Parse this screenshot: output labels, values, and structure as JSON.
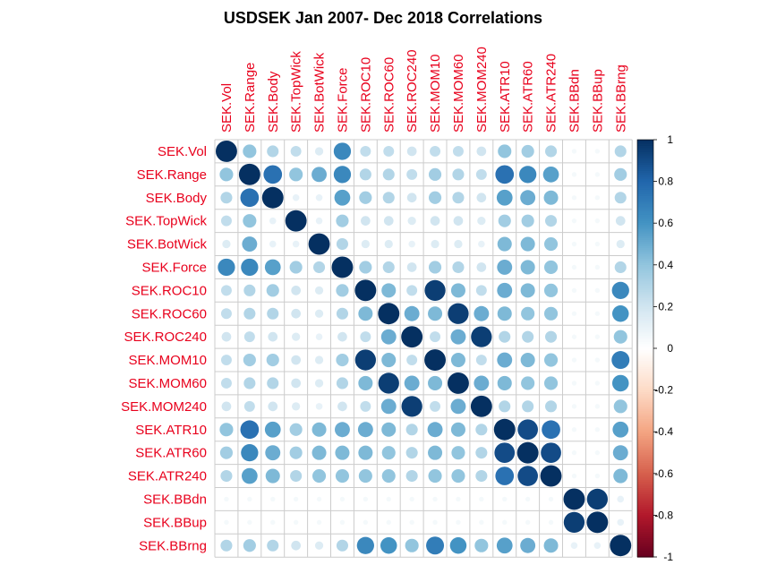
{
  "chart_data": {
    "type": "heatmap",
    "title": "USDSEK Jan 2007- Dec 2018 Correlations",
    "variables": [
      "SEK.Vol",
      "SEK.Range",
      "SEK.Body",
      "SEK.TopWick",
      "SEK.BotWick",
      "SEK.Force",
      "SEK.ROC10",
      "SEK.ROC60",
      "SEK.ROC240",
      "SEK.MOM10",
      "SEK.MOM60",
      "SEK.MOM240",
      "SEK.ATR10",
      "SEK.ATR60",
      "SEK.ATR240",
      "SEK.BBdn",
      "SEK.BBup",
      "SEK.BBrng"
    ],
    "matrix": [
      [
        1.0,
        0.4,
        0.3,
        0.25,
        0.15,
        0.65,
        0.25,
        0.25,
        0.2,
        0.25,
        0.25,
        0.2,
        0.4,
        0.35,
        0.3,
        0.05,
        0.05,
        0.3
      ],
      [
        0.4,
        1.0,
        0.75,
        0.4,
        0.5,
        0.65,
        0.3,
        0.3,
        0.25,
        0.35,
        0.3,
        0.25,
        0.75,
        0.65,
        0.55,
        0.05,
        0.05,
        0.35
      ],
      [
        0.3,
        0.75,
        1.0,
        0.1,
        0.1,
        0.55,
        0.35,
        0.3,
        0.2,
        0.35,
        0.3,
        0.2,
        0.55,
        0.5,
        0.45,
        0.05,
        0.05,
        0.3
      ],
      [
        0.25,
        0.4,
        0.1,
        1.0,
        0.1,
        0.35,
        0.2,
        0.2,
        0.15,
        0.2,
        0.2,
        0.15,
        0.35,
        0.35,
        0.3,
        0.05,
        0.05,
        0.2
      ],
      [
        0.15,
        0.5,
        0.1,
        0.1,
        1.0,
        0.3,
        0.15,
        0.15,
        0.1,
        0.15,
        0.15,
        0.1,
        0.45,
        0.45,
        0.4,
        0.05,
        0.05,
        0.15
      ],
      [
        0.65,
        0.65,
        0.55,
        0.35,
        0.3,
        1.0,
        0.35,
        0.3,
        0.2,
        0.35,
        0.3,
        0.2,
        0.5,
        0.45,
        0.4,
        0.05,
        0.05,
        0.3
      ],
      [
        0.25,
        0.3,
        0.35,
        0.2,
        0.15,
        0.35,
        1.0,
        0.45,
        0.25,
        0.95,
        0.45,
        0.25,
        0.5,
        0.45,
        0.4,
        0.05,
        0.05,
        0.65
      ],
      [
        0.25,
        0.3,
        0.3,
        0.2,
        0.15,
        0.3,
        0.45,
        1.0,
        0.5,
        0.45,
        0.95,
        0.5,
        0.45,
        0.4,
        0.4,
        0.05,
        0.05,
        0.6
      ],
      [
        0.2,
        0.25,
        0.2,
        0.15,
        0.1,
        0.2,
        0.25,
        0.5,
        1.0,
        0.25,
        0.5,
        0.95,
        0.3,
        0.3,
        0.3,
        0.05,
        0.05,
        0.4
      ],
      [
        0.25,
        0.35,
        0.35,
        0.2,
        0.15,
        0.35,
        0.95,
        0.45,
        0.25,
        1.0,
        0.45,
        0.25,
        0.5,
        0.45,
        0.4,
        0.05,
        0.05,
        0.7
      ],
      [
        0.25,
        0.3,
        0.3,
        0.2,
        0.15,
        0.3,
        0.45,
        0.95,
        0.5,
        0.45,
        1.0,
        0.5,
        0.45,
        0.4,
        0.4,
        0.05,
        0.05,
        0.6
      ],
      [
        0.2,
        0.25,
        0.2,
        0.15,
        0.1,
        0.2,
        0.25,
        0.5,
        0.95,
        0.25,
        0.5,
        1.0,
        0.3,
        0.3,
        0.3,
        0.05,
        0.05,
        0.4
      ],
      [
        0.4,
        0.75,
        0.55,
        0.35,
        0.45,
        0.5,
        0.5,
        0.45,
        0.3,
        0.5,
        0.45,
        0.3,
        1.0,
        0.9,
        0.75,
        0.05,
        0.05,
        0.55
      ],
      [
        0.35,
        0.65,
        0.5,
        0.35,
        0.45,
        0.45,
        0.45,
        0.4,
        0.3,
        0.45,
        0.4,
        0.3,
        0.9,
        1.0,
        0.9,
        0.05,
        0.05,
        0.5
      ],
      [
        0.3,
        0.55,
        0.45,
        0.3,
        0.4,
        0.4,
        0.4,
        0.4,
        0.3,
        0.4,
        0.4,
        0.3,
        0.75,
        0.9,
        1.0,
        0.05,
        0.05,
        0.45
      ],
      [
        0.05,
        0.05,
        0.05,
        0.05,
        0.05,
        0.05,
        0.05,
        0.05,
        0.05,
        0.05,
        0.05,
        0.05,
        0.05,
        0.05,
        0.05,
        1.0,
        0.95,
        0.1
      ],
      [
        0.05,
        0.05,
        0.05,
        0.05,
        0.05,
        0.05,
        0.05,
        0.05,
        0.05,
        0.05,
        0.05,
        0.05,
        0.05,
        0.05,
        0.05,
        0.95,
        1.0,
        0.1
      ],
      [
        0.3,
        0.35,
        0.3,
        0.2,
        0.15,
        0.3,
        0.65,
        0.6,
        0.4,
        0.7,
        0.6,
        0.4,
        0.55,
        0.5,
        0.45,
        0.1,
        0.1,
        1.0
      ]
    ],
    "colorbar": {
      "min": -1,
      "max": 1,
      "ticks": [
        "1",
        "0.8",
        "0.6",
        "0.4",
        "0.2",
        "0",
        "-0.2",
        "-0.4",
        "-0.6",
        "-0.8",
        "-1"
      ],
      "palette": [
        "#67001f",
        "#b2182b",
        "#d6604d",
        "#f4a582",
        "#fddbc7",
        "#ffffff",
        "#d1e5f0",
        "#92c5de",
        "#4393c3",
        "#2166ac",
        "#053061"
      ]
    },
    "label_color": "#e8001c",
    "grid_color": "#cccccc"
  }
}
